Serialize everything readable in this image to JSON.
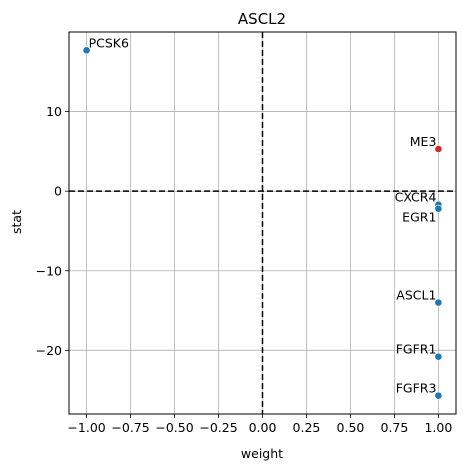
{
  "chart_data": {
    "type": "scatter",
    "title": "ASCL2",
    "xlabel": "weight",
    "ylabel": "stat",
    "xlim": [
      -1.1,
      1.1
    ],
    "ylim": [
      -28,
      20
    ],
    "xticks": [
      -1.0,
      -0.75,
      -0.5,
      -0.25,
      0.0,
      0.25,
      0.5,
      0.75,
      1.0
    ],
    "xtick_labels": [
      "−1.00",
      "−0.75",
      "−0.50",
      "−0.25",
      "0.00",
      "0.25",
      "0.50",
      "0.75",
      "1.00"
    ],
    "yticks": [
      -20,
      -10,
      0,
      10
    ],
    "ytick_labels": [
      "−20",
      "−10",
      "0",
      "10"
    ],
    "grid": true,
    "reference_lines": {
      "x": 0,
      "y": 0,
      "style": "dashed",
      "color": "#000000"
    },
    "colors": {
      "default": "#1f77b4",
      "highlight": "#d62728",
      "grid": "#b0b0b0"
    },
    "points": [
      {
        "label": "PCSK6",
        "x": -1.0,
        "y": 17.7,
        "color": "#1f77b4",
        "label_pos": "right"
      },
      {
        "label": "ME3",
        "x": 1.0,
        "y": 5.3,
        "color": "#d62728",
        "label_pos": "left"
      },
      {
        "label": "CXCR4",
        "x": 1.0,
        "y": -1.7,
        "color": "#1f77b4",
        "label_pos": "left"
      },
      {
        "label": "EGR1",
        "x": 1.0,
        "y": -2.2,
        "color": "#1f77b4",
        "label_pos": "left-below"
      },
      {
        "label": "ASCL1",
        "x": 1.0,
        "y": -14.0,
        "color": "#1f77b4",
        "label_pos": "left"
      },
      {
        "label": "FGFR1",
        "x": 1.0,
        "y": -20.8,
        "color": "#1f77b4",
        "label_pos": "left"
      },
      {
        "label": "FGFR3",
        "x": 1.0,
        "y": -25.7,
        "color": "#1f77b4",
        "label_pos": "left"
      }
    ]
  }
}
